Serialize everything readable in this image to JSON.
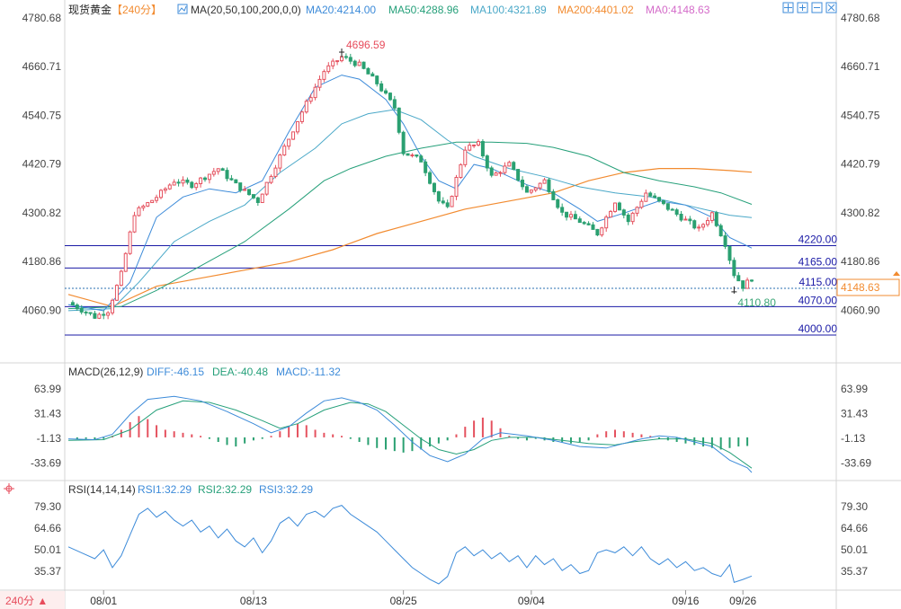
{
  "header": {
    "symbol": "现货黄金",
    "period_bracket": "【240分】",
    "ma_label": "MA(20,50,100,200,0,0)",
    "ma_values": [
      {
        "text": "MA20:4214.00",
        "color": "#3d8bd9"
      },
      {
        "text": "MA50:4288.96",
        "color": "#26a07a"
      },
      {
        "text": "MA100:4321.89",
        "color": "#4aa8c8"
      },
      {
        "text": "MA200:4401.02",
        "color": "#f28b30"
      },
      {
        "text": "MA0:4148.63",
        "color": "#d46bc9"
      }
    ],
    "toolbar_icons": [
      "crosshair-icon",
      "zoom-in-icon",
      "zoom-out-icon",
      "close-icon"
    ]
  },
  "price_axis": {
    "ticks": [
      "4780.68",
      "4660.71",
      "4540.75",
      "4420.79",
      "4300.82",
      "4180.86",
      "4060.90"
    ],
    "current_price": "4148.63",
    "current_color": "#f28b30"
  },
  "levels": [
    {
      "value": 4220,
      "label": "4220.00",
      "style": "solid"
    },
    {
      "value": 4165,
      "label": "4165.00",
      "style": "solid"
    },
    {
      "value": 4115,
      "label": "4115.00",
      "style": "dotted"
    },
    {
      "value": 4070,
      "label": "4070.00",
      "style": "solid"
    },
    {
      "value": 4000,
      "label": "4000.00",
      "style": "solid"
    }
  ],
  "annotations": {
    "high": {
      "label": "4696.59",
      "color": "#e74c5c"
    },
    "low": {
      "label": "4110.80",
      "color": "#3aa576"
    }
  },
  "macd": {
    "title": "MACD(26,12,9)",
    "values": [
      {
        "text": "DIFF:-46.15",
        "color": "#3d8bd9"
      },
      {
        "text": "DEA:-40.48",
        "color": "#26a07a"
      },
      {
        "text": "MACD:-11.32",
        "color": "#3d8bd9"
      }
    ],
    "ticks": [
      "63.99",
      "31.43",
      "-1.13",
      "-33.69"
    ]
  },
  "rsi": {
    "title": "RSI(14,14,14)",
    "values": [
      {
        "text": "RSI1:32.29",
        "color": "#3d8bd9"
      },
      {
        "text": "RSI2:32.29",
        "color": "#26a07a"
      },
      {
        "text": "RSI3:32.29",
        "color": "#3d8bd9"
      }
    ],
    "ticks": [
      "79.30",
      "64.66",
      "50.01",
      "35.37"
    ]
  },
  "footer": {
    "period_button": "240分 ▲",
    "dates": [
      "08/01",
      "08/13",
      "08/25",
      "09/04",
      "09/16",
      "09/26"
    ]
  },
  "chart_data": {
    "type": "candlestick",
    "instrument": "现货黄金",
    "price_ylim": [
      4000,
      4780.68
    ],
    "ma_endpoints": {
      "MA20": 4214.0,
      "MA50": 4288.96,
      "MA100": 4321.89,
      "MA200": 4401.02,
      "MA0": 4148.63
    },
    "price_path": [
      [
        0,
        4080
      ],
      [
        6,
        4045
      ],
      [
        9,
        4060
      ],
      [
        12,
        4150
      ],
      [
        15,
        4300
      ],
      [
        20,
        4340
      ],
      [
        24,
        4380
      ],
      [
        28,
        4370
      ],
      [
        34,
        4410
      ],
      [
        38,
        4370
      ],
      [
        43,
        4330
      ],
      [
        48,
        4440
      ],
      [
        53,
        4550
      ],
      [
        58,
        4650
      ],
      [
        62,
        4685
      ],
      [
        66,
        4665
      ],
      [
        70,
        4620
      ],
      [
        74,
        4560
      ],
      [
        76,
        4450
      ],
      [
        80,
        4430
      ],
      [
        84,
        4330
      ],
      [
        86,
        4310
      ],
      [
        90,
        4460
      ],
      [
        93,
        4470
      ],
      [
        96,
        4390
      ],
      [
        100,
        4420
      ],
      [
        104,
        4350
      ],
      [
        108,
        4380
      ],
      [
        112,
        4300
      ],
      [
        116,
        4280
      ],
      [
        120,
        4250
      ],
      [
        124,
        4330
      ],
      [
        127,
        4280
      ],
      [
        131,
        4350
      ],
      [
        135,
        4320
      ],
      [
        139,
        4290
      ],
      [
        143,
        4260
      ],
      [
        146,
        4300
      ],
      [
        149,
        4225
      ],
      [
        151,
        4150
      ],
      [
        153,
        4120
      ],
      [
        155,
        4140
      ]
    ],
    "ma20_path": [
      [
        0,
        4075
      ],
      [
        8,
        4060
      ],
      [
        14,
        4130
      ],
      [
        20,
        4290
      ],
      [
        26,
        4340
      ],
      [
        32,
        4360
      ],
      [
        38,
        4350
      ],
      [
        44,
        4380
      ],
      [
        50,
        4500
      ],
      [
        56,
        4610
      ],
      [
        62,
        4640
      ],
      [
        66,
        4630
      ],
      [
        72,
        4580
      ],
      [
        76,
        4520
      ],
      [
        80,
        4440
      ],
      [
        84,
        4380
      ],
      [
        88,
        4360
      ],
      [
        92,
        4420
      ],
      [
        96,
        4410
      ],
      [
        104,
        4370
      ],
      [
        110,
        4350
      ],
      [
        116,
        4310
      ],
      [
        120,
        4280
      ],
      [
        126,
        4300
      ],
      [
        134,
        4330
      ],
      [
        140,
        4320
      ],
      [
        146,
        4290
      ],
      [
        150,
        4240
      ],
      [
        155,
        4214
      ]
    ],
    "ma50_path": [
      [
        0,
        4060
      ],
      [
        10,
        4065
      ],
      [
        16,
        4130
      ],
      [
        24,
        4230
      ],
      [
        32,
        4280
      ],
      [
        40,
        4320
      ],
      [
        48,
        4400
      ],
      [
        56,
        4460
      ],
      [
        62,
        4520
      ],
      [
        68,
        4545
      ],
      [
        74,
        4555
      ],
      [
        80,
        4530
      ],
      [
        86,
        4480
      ],
      [
        92,
        4440
      ],
      [
        100,
        4410
      ],
      [
        108,
        4390
      ],
      [
        116,
        4365
      ],
      [
        124,
        4350
      ],
      [
        132,
        4340
      ],
      [
        140,
        4320
      ],
      [
        146,
        4305
      ],
      [
        150,
        4295
      ],
      [
        155,
        4288.96
      ]
    ],
    "ma100_path": [
      [
        0,
        4065
      ],
      [
        12,
        4070
      ],
      [
        20,
        4110
      ],
      [
        30,
        4170
      ],
      [
        40,
        4230
      ],
      [
        50,
        4310
      ],
      [
        58,
        4380
      ],
      [
        64,
        4410
      ],
      [
        72,
        4440
      ],
      [
        80,
        4460
      ],
      [
        88,
        4475
      ],
      [
        96,
        4475
      ],
      [
        104,
        4472
      ],
      [
        110,
        4462
      ],
      [
        118,
        4440
      ],
      [
        126,
        4400
      ],
      [
        134,
        4380
      ],
      [
        142,
        4365
      ],
      [
        148,
        4350
      ],
      [
        155,
        4321.89
      ]
    ],
    "ma200_path": [
      [
        0,
        4100
      ],
      [
        10,
        4070
      ],
      [
        20,
        4120
      ],
      [
        30,
        4140
      ],
      [
        40,
        4160
      ],
      [
        50,
        4180
      ],
      [
        60,
        4210
      ],
      [
        70,
        4250
      ],
      [
        80,
        4280
      ],
      [
        90,
        4310
      ],
      [
        100,
        4330
      ],
      [
        110,
        4350
      ],
      [
        118,
        4380
      ],
      [
        126,
        4400
      ],
      [
        134,
        4410
      ],
      [
        142,
        4410
      ],
      [
        150,
        4405
      ],
      [
        155,
        4401.02
      ]
    ],
    "macd_ylim": [
      -45,
      72
    ],
    "diff_path": [
      [
        0,
        -2
      ],
      [
        6,
        -3
      ],
      [
        10,
        4
      ],
      [
        14,
        30
      ],
      [
        18,
        50
      ],
      [
        24,
        54
      ],
      [
        30,
        48
      ],
      [
        36,
        34
      ],
      [
        42,
        18
      ],
      [
        46,
        6
      ],
      [
        50,
        14
      ],
      [
        54,
        32
      ],
      [
        58,
        48
      ],
      [
        62,
        52
      ],
      [
        66,
        46
      ],
      [
        70,
        36
      ],
      [
        74,
        16
      ],
      [
        78,
        -6
      ],
      [
        82,
        -24
      ],
      [
        86,
        -32
      ],
      [
        90,
        -22
      ],
      [
        94,
        -2
      ],
      [
        98,
        6
      ],
      [
        104,
        2
      ],
      [
        110,
        -4
      ],
      [
        116,
        -12
      ],
      [
        122,
        -14
      ],
      [
        126,
        -8
      ],
      [
        130,
        -2
      ],
      [
        134,
        2
      ],
      [
        138,
        0
      ],
      [
        142,
        -6
      ],
      [
        146,
        -12
      ],
      [
        150,
        -30
      ],
      [
        154,
        -40
      ],
      [
        155,
        -46.15
      ]
    ],
    "dea_path": [
      [
        0,
        -4
      ],
      [
        8,
        -3
      ],
      [
        14,
        10
      ],
      [
        20,
        36
      ],
      [
        26,
        48
      ],
      [
        32,
        46
      ],
      [
        38,
        36
      ],
      [
        44,
        22
      ],
      [
        48,
        12
      ],
      [
        52,
        18
      ],
      [
        58,
        36
      ],
      [
        64,
        46
      ],
      [
        68,
        44
      ],
      [
        72,
        34
      ],
      [
        76,
        16
      ],
      [
        80,
        -2
      ],
      [
        84,
        -16
      ],
      [
        88,
        -22
      ],
      [
        92,
        -16
      ],
      [
        96,
        -4
      ],
      [
        100,
        0
      ],
      [
        106,
        0
      ],
      [
        112,
        -4
      ],
      [
        118,
        -8
      ],
      [
        124,
        -10
      ],
      [
        128,
        -6
      ],
      [
        134,
        -2
      ],
      [
        140,
        -2
      ],
      [
        146,
        -8
      ],
      [
        150,
        -20
      ],
      [
        155,
        -40.48
      ]
    ],
    "macd_hist": [
      [
        2,
        -2
      ],
      [
        4,
        -2
      ],
      [
        6,
        -3
      ],
      [
        8,
        -2
      ],
      [
        10,
        2
      ],
      [
        12,
        10
      ],
      [
        14,
        20
      ],
      [
        16,
        28
      ],
      [
        18,
        24
      ],
      [
        20,
        16
      ],
      [
        22,
        10
      ],
      [
        24,
        8
      ],
      [
        26,
        6
      ],
      [
        28,
        4
      ],
      [
        30,
        2
      ],
      [
        32,
        -2
      ],
      [
        34,
        -6
      ],
      [
        36,
        -10
      ],
      [
        38,
        -12
      ],
      [
        40,
        -8
      ],
      [
        42,
        -4
      ],
      [
        44,
        -2
      ],
      [
        46,
        2
      ],
      [
        48,
        8
      ],
      [
        50,
        14
      ],
      [
        52,
        18
      ],
      [
        54,
        16
      ],
      [
        56,
        10
      ],
      [
        58,
        6
      ],
      [
        60,
        4
      ],
      [
        62,
        2
      ],
      [
        64,
        -2
      ],
      [
        66,
        -6
      ],
      [
        68,
        -10
      ],
      [
        70,
        -14
      ],
      [
        72,
        -16
      ],
      [
        74,
        -18
      ],
      [
        76,
        -20
      ],
      [
        78,
        -18
      ],
      [
        80,
        -16
      ],
      [
        82,
        -12
      ],
      [
        84,
        -8
      ],
      [
        86,
        -4
      ],
      [
        88,
        4
      ],
      [
        90,
        14
      ],
      [
        92,
        22
      ],
      [
        94,
        26
      ],
      [
        96,
        22
      ],
      [
        98,
        12
      ],
      [
        100,
        2
      ],
      [
        102,
        -2
      ],
      [
        104,
        -4
      ],
      [
        106,
        -2
      ],
      [
        108,
        -4
      ],
      [
        110,
        -6
      ],
      [
        112,
        -6
      ],
      [
        114,
        -8
      ],
      [
        116,
        -6
      ],
      [
        118,
        -4
      ],
      [
        120,
        4
      ],
      [
        122,
        8
      ],
      [
        124,
        10
      ],
      [
        126,
        8
      ],
      [
        128,
        6
      ],
      [
        130,
        4
      ],
      [
        132,
        2
      ],
      [
        134,
        -2
      ],
      [
        136,
        -4
      ],
      [
        138,
        -6
      ],
      [
        140,
        -8
      ],
      [
        142,
        -10
      ],
      [
        144,
        -12
      ],
      [
        146,
        -14
      ],
      [
        148,
        -16
      ],
      [
        150,
        -14
      ],
      [
        152,
        -12
      ],
      [
        154,
        -11.32
      ]
    ],
    "rsi_ylim": [
      24,
      84
    ],
    "rsi_path": [
      [
        0,
        52
      ],
      [
        3,
        48
      ],
      [
        6,
        44
      ],
      [
        8,
        50
      ],
      [
        10,
        38
      ],
      [
        12,
        46
      ],
      [
        14,
        60
      ],
      [
        16,
        74
      ],
      [
        18,
        78
      ],
      [
        20,
        72
      ],
      [
        22,
        76
      ],
      [
        24,
        70
      ],
      [
        26,
        66
      ],
      [
        28,
        70
      ],
      [
        30,
        62
      ],
      [
        32,
        66
      ],
      [
        34,
        58
      ],
      [
        36,
        64
      ],
      [
        38,
        56
      ],
      [
        40,
        52
      ],
      [
        42,
        58
      ],
      [
        44,
        48
      ],
      [
        46,
        56
      ],
      [
        48,
        68
      ],
      [
        50,
        72
      ],
      [
        52,
        66
      ],
      [
        54,
        74
      ],
      [
        56,
        76
      ],
      [
        58,
        72
      ],
      [
        60,
        78
      ],
      [
        62,
        80
      ],
      [
        64,
        74
      ],
      [
        66,
        70
      ],
      [
        68,
        66
      ],
      [
        70,
        62
      ],
      [
        72,
        56
      ],
      [
        74,
        50
      ],
      [
        76,
        44
      ],
      [
        78,
        38
      ],
      [
        80,
        34
      ],
      [
        82,
        30
      ],
      [
        84,
        27
      ],
      [
        86,
        32
      ],
      [
        88,
        48
      ],
      [
        90,
        52
      ],
      [
        92,
        46
      ],
      [
        94,
        50
      ],
      [
        96,
        44
      ],
      [
        98,
        48
      ],
      [
        100,
        42
      ],
      [
        102,
        46
      ],
      [
        104,
        38
      ],
      [
        106,
        46
      ],
      [
        108,
        40
      ],
      [
        110,
        44
      ],
      [
        112,
        36
      ],
      [
        114,
        40
      ],
      [
        116,
        34
      ],
      [
        118,
        36
      ],
      [
        120,
        48
      ],
      [
        122,
        50
      ],
      [
        124,
        48
      ],
      [
        126,
        52
      ],
      [
        128,
        46
      ],
      [
        130,
        52
      ],
      [
        132,
        44
      ],
      [
        134,
        40
      ],
      [
        136,
        44
      ],
      [
        138,
        38
      ],
      [
        140,
        42
      ],
      [
        142,
        36
      ],
      [
        144,
        38
      ],
      [
        146,
        34
      ],
      [
        148,
        32
      ],
      [
        150,
        40
      ],
      [
        151,
        28
      ],
      [
        153,
        30
      ],
      [
        155,
        32.29
      ]
    ]
  }
}
